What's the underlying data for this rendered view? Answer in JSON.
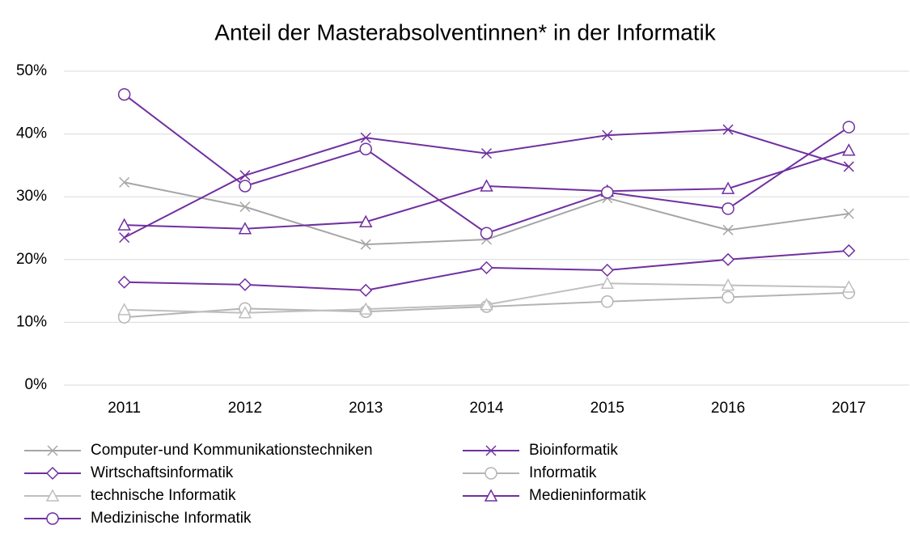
{
  "chart_data": {
    "type": "line",
    "title": "Anteil der Masterabsolventinnen* in der Informatik",
    "categories": [
      "2011",
      "2012",
      "2013",
      "2014",
      "2015",
      "2016",
      "2017"
    ],
    "ylim": [
      0,
      50
    ],
    "yticks": [
      {
        "value": 0,
        "label": "0%"
      },
      {
        "value": 10,
        "label": "10%"
      },
      {
        "value": 20,
        "label": "20%"
      },
      {
        "value": 30,
        "label": "30%"
      },
      {
        "value": 40,
        "label": "40%"
      },
      {
        "value": 50,
        "label": "50%"
      }
    ],
    "grid": true,
    "legend": "bottom",
    "series": [
      {
        "name": "Computer-und Kommunikationstechniken",
        "color": "#a6a6a6",
        "marker": "x",
        "values": [
          32.3,
          28.4,
          22.4,
          23.2,
          29.8,
          24.7,
          27.3
        ]
      },
      {
        "name": "Bioinformatik",
        "color": "#7030a0",
        "marker": "x",
        "values": [
          23.5,
          33.4,
          39.4,
          36.9,
          39.8,
          40.7,
          34.8
        ]
      },
      {
        "name": "Wirtschaftsinformatik",
        "color": "#7030a0",
        "marker": "diamond",
        "values": [
          16.4,
          16.0,
          15.1,
          18.7,
          18.3,
          20.0,
          21.4
        ]
      },
      {
        "name": "Informatik",
        "color": "#b4b4b4",
        "marker": "circle",
        "values": [
          10.8,
          12.2,
          11.7,
          12.5,
          13.3,
          14.0,
          14.7
        ]
      },
      {
        "name": "technische Informatik",
        "color": "#bfbfbf",
        "marker": "triangle",
        "values": [
          12.0,
          11.5,
          12.1,
          12.8,
          16.2,
          15.9,
          15.6
        ]
      },
      {
        "name": "Medieninformatik",
        "color": "#7030a0",
        "marker": "triangle",
        "values": [
          25.5,
          24.9,
          26.0,
          31.7,
          30.9,
          31.3,
          37.4
        ]
      },
      {
        "name": "Medizinische Informatik",
        "color": "#7030a0",
        "marker": "circle",
        "values": [
          46.3,
          31.7,
          37.6,
          24.2,
          30.7,
          28.1,
          41.1
        ]
      }
    ]
  }
}
